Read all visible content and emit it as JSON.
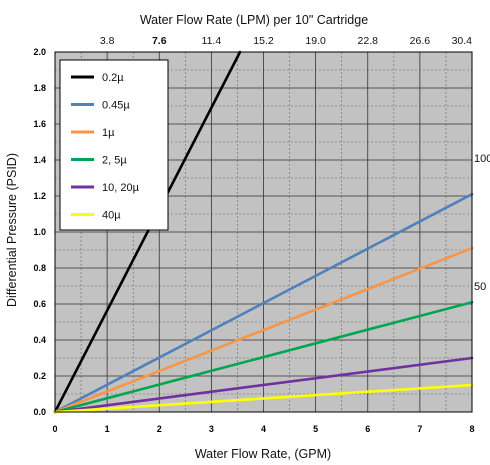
{
  "chart_data": {
    "type": "line",
    "title": "",
    "top_axis": {
      "label": "Water Flow Rate (LPM) per 10\" Cartridge",
      "ticks": [
        {
          "value": 1,
          "label": "3.8",
          "bold": false
        },
        {
          "value": 2,
          "label": "7.6",
          "bold": true
        },
        {
          "value": 3,
          "label": "11.4",
          "bold": false
        },
        {
          "value": 4,
          "label": "15.2",
          "bold": false
        },
        {
          "value": 5,
          "label": "19.0",
          "bold": false
        },
        {
          "value": 6,
          "label": "22.8",
          "bold": false
        },
        {
          "value": 7,
          "label": "26.6",
          "bold": false
        },
        {
          "value": 8,
          "label": "30.4",
          "bold": false
        }
      ]
    },
    "xlabel": "Water Flow Rate, (GPM)",
    "ylabel": "Differential Pressure (PSID)",
    "xlim": [
      0,
      8
    ],
    "ylim": [
      0,
      2.0
    ],
    "xticks": [
      {
        "value": 0,
        "label": "0"
      },
      {
        "value": 1,
        "label": "1"
      },
      {
        "value": 2,
        "label": "2"
      },
      {
        "value": 3,
        "label": "3"
      },
      {
        "value": 4,
        "label": "4"
      },
      {
        "value": 5,
        "label": "5"
      },
      {
        "value": 6,
        "label": "6"
      },
      {
        "value": 7,
        "label": "7"
      },
      {
        "value": 8,
        "label": "8"
      }
    ],
    "yticks": [
      {
        "value": 0.0,
        "label": "0.0"
      },
      {
        "value": 0.2,
        "label": "0.2"
      },
      {
        "value": 0.4,
        "label": "0.4"
      },
      {
        "value": 0.6,
        "label": "0.6"
      },
      {
        "value": 0.8,
        "label": "0.8"
      },
      {
        "value": 1.0,
        "label": "1.0"
      },
      {
        "value": 1.2,
        "label": "1.2"
      },
      {
        "value": 1.4,
        "label": "1.4"
      },
      {
        "value": 1.6,
        "label": "1.6"
      },
      {
        "value": 1.8,
        "label": "1.8"
      },
      {
        "value": 2.0,
        "label": "2.0"
      }
    ],
    "grid": true,
    "plot_background": "#c2c2c2",
    "legend_position": "top-left",
    "series": [
      {
        "name": "0.2µ",
        "color": "#000000",
        "x": [
          0,
          3.55
        ],
        "y": [
          0,
          2.0
        ]
      },
      {
        "name": "0.45µ",
        "color": "#4f81bd",
        "x": [
          0,
          8
        ],
        "y": [
          0,
          1.21
        ]
      },
      {
        "name": "1µ",
        "color": "#f79646",
        "x": [
          0,
          8
        ],
        "y": [
          0,
          0.91
        ]
      },
      {
        "name": "2, 5µ",
        "color": "#00a651",
        "x": [
          0,
          8
        ],
        "y": [
          0,
          0.61
        ]
      },
      {
        "name": "10, 20µ",
        "color": "#7030a0",
        "x": [
          0,
          8
        ],
        "y": [
          0,
          0.3
        ]
      },
      {
        "name": "40µ",
        "color": "#ffff00",
        "x": [
          0,
          8
        ],
        "y": [
          0,
          0.15
        ]
      }
    ],
    "annotations": [
      {
        "text": "100",
        "y": 1.41
      },
      {
        "text": "50",
        "y": 0.7
      }
    ]
  }
}
